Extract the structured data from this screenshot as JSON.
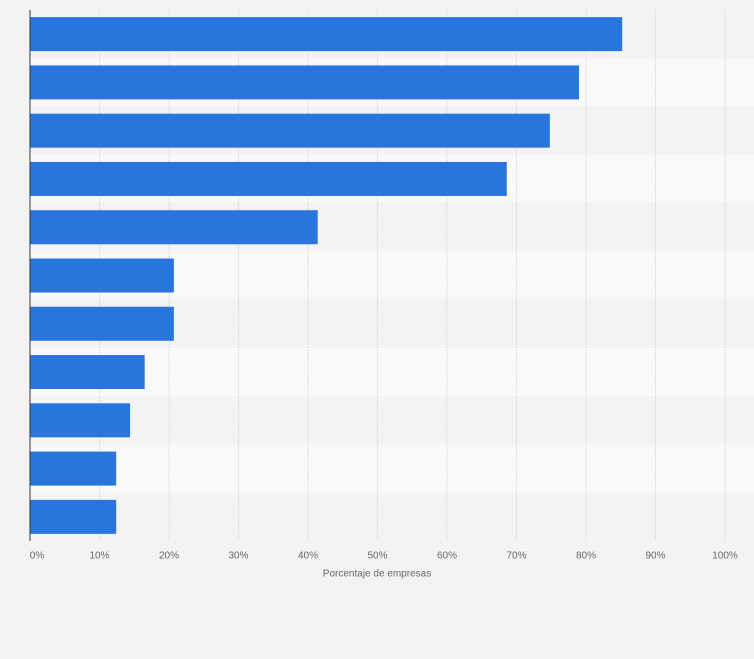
{
  "chart_data": {
    "type": "bar",
    "orientation": "horizontal",
    "xlabel": "Porcentaje de empresas",
    "categories": [
      null,
      null,
      null,
      null,
      null,
      null,
      null,
      null,
      null,
      null,
      null
    ],
    "values": [
      85.2,
      79.0,
      74.8,
      68.6,
      41.4,
      20.7,
      20.7,
      16.5,
      14.4,
      12.4,
      12.4
    ],
    "color": "#2876dd",
    "xlim": [
      0,
      100
    ],
    "xticks": [
      {
        "value": 0,
        "label": "0%"
      },
      {
        "value": 10,
        "label": "10%"
      },
      {
        "value": 20,
        "label": "20%"
      },
      {
        "value": 30,
        "label": "30%"
      },
      {
        "value": 40,
        "label": "40%"
      },
      {
        "value": 50,
        "label": "50%"
      },
      {
        "value": 60,
        "label": "60%"
      },
      {
        "value": 70,
        "label": "70%"
      },
      {
        "value": 80,
        "label": "80%"
      },
      {
        "value": 90,
        "label": "90%"
      },
      {
        "value": 100,
        "label": "100%"
      }
    ],
    "grid": true
  }
}
